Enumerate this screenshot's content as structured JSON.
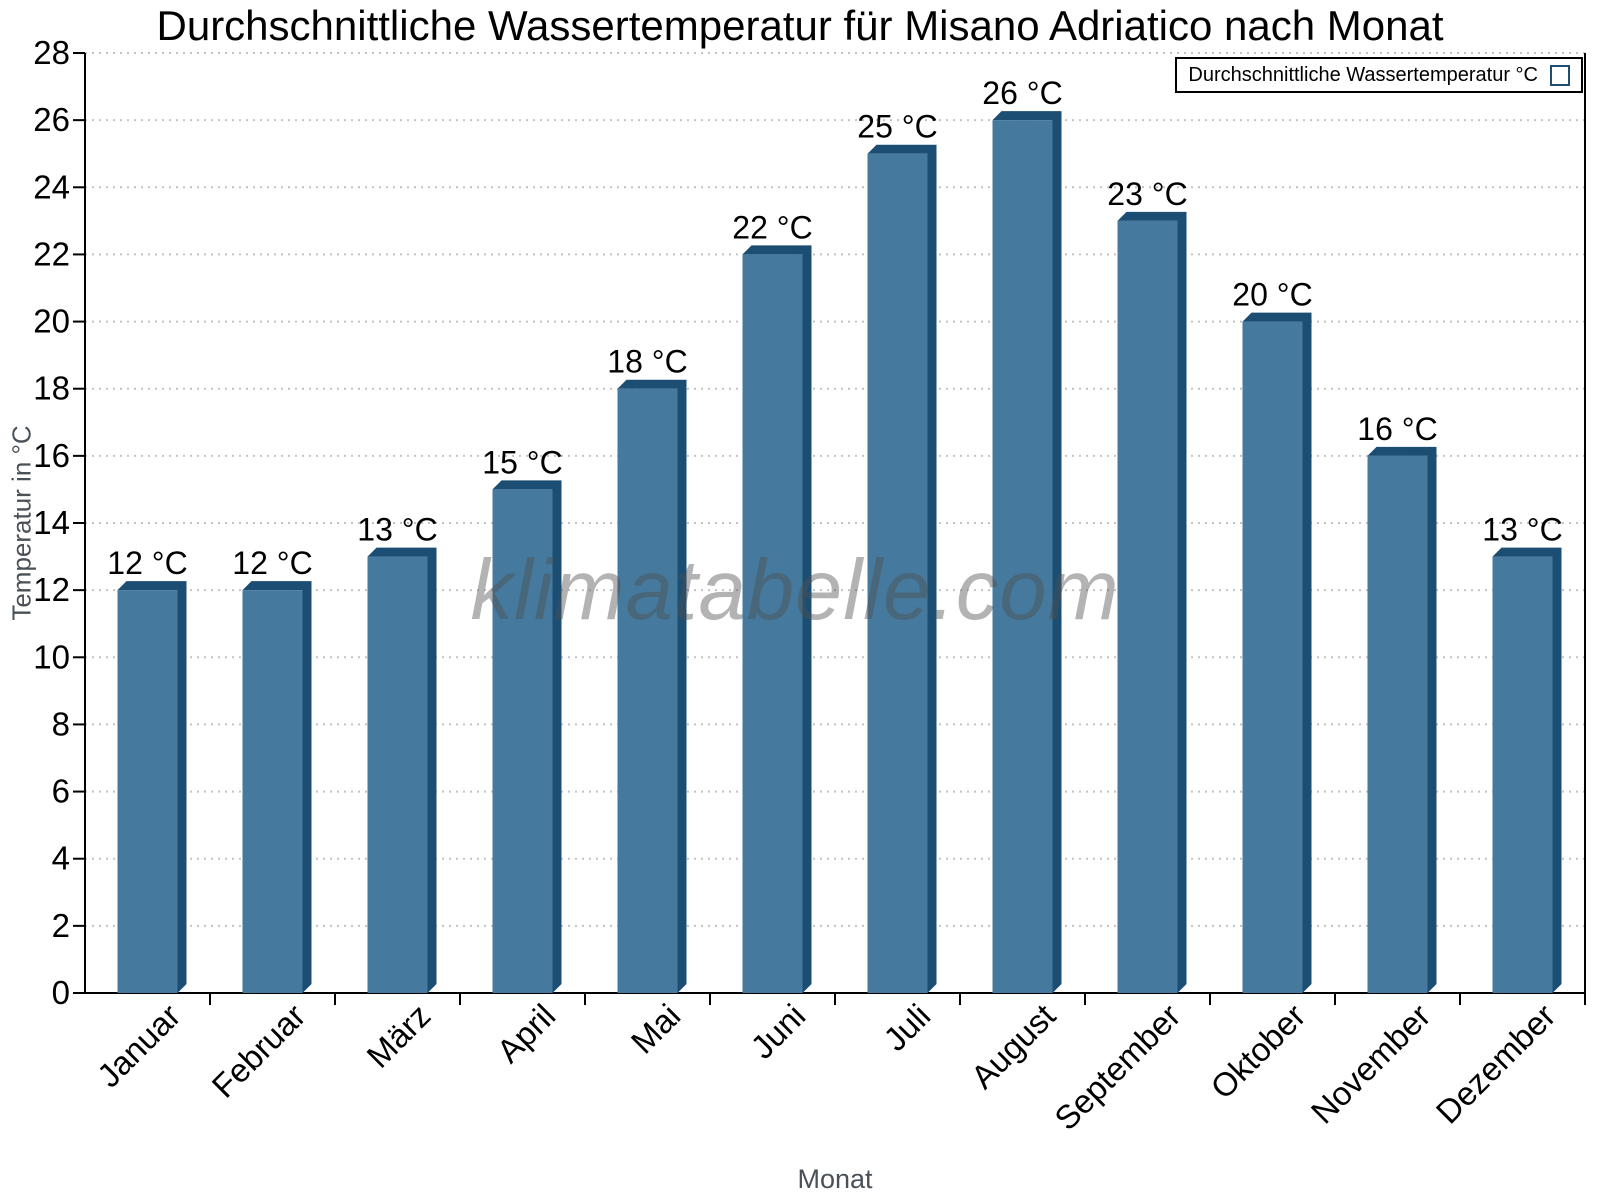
{
  "chart_data": {
    "type": "bar",
    "title": "Durchschnittliche Wassertemperatur für Misano Adriatico nach Monat",
    "xlabel": "Monat",
    "ylabel": "Temperatur in °C",
    "categories": [
      "Januar",
      "Februar",
      "März",
      "April",
      "Mai",
      "Juni",
      "Juli",
      "August",
      "September",
      "Oktober",
      "November",
      "Dezember"
    ],
    "values": [
      12,
      12,
      13,
      15,
      18,
      22,
      25,
      26,
      23,
      20,
      16,
      13
    ],
    "value_unit": "°C",
    "value_label_format": "{v} °C",
    "ylim": [
      0,
      28
    ],
    "ytick_step": 2,
    "grid": "horizontal-dotted",
    "legend": {
      "label": "Durchschnittliche Wassertemperatur °C",
      "position": "top-right"
    },
    "watermark": "klimatabelle.com",
    "colors": {
      "bar_face": "#45799D",
      "bar_shade": "#1C4D72",
      "grid": "#C3C3C3",
      "axis": "#000000",
      "text": "#000000",
      "axis_label_gray": "#495057",
      "background": "#FFFFFF"
    }
  }
}
